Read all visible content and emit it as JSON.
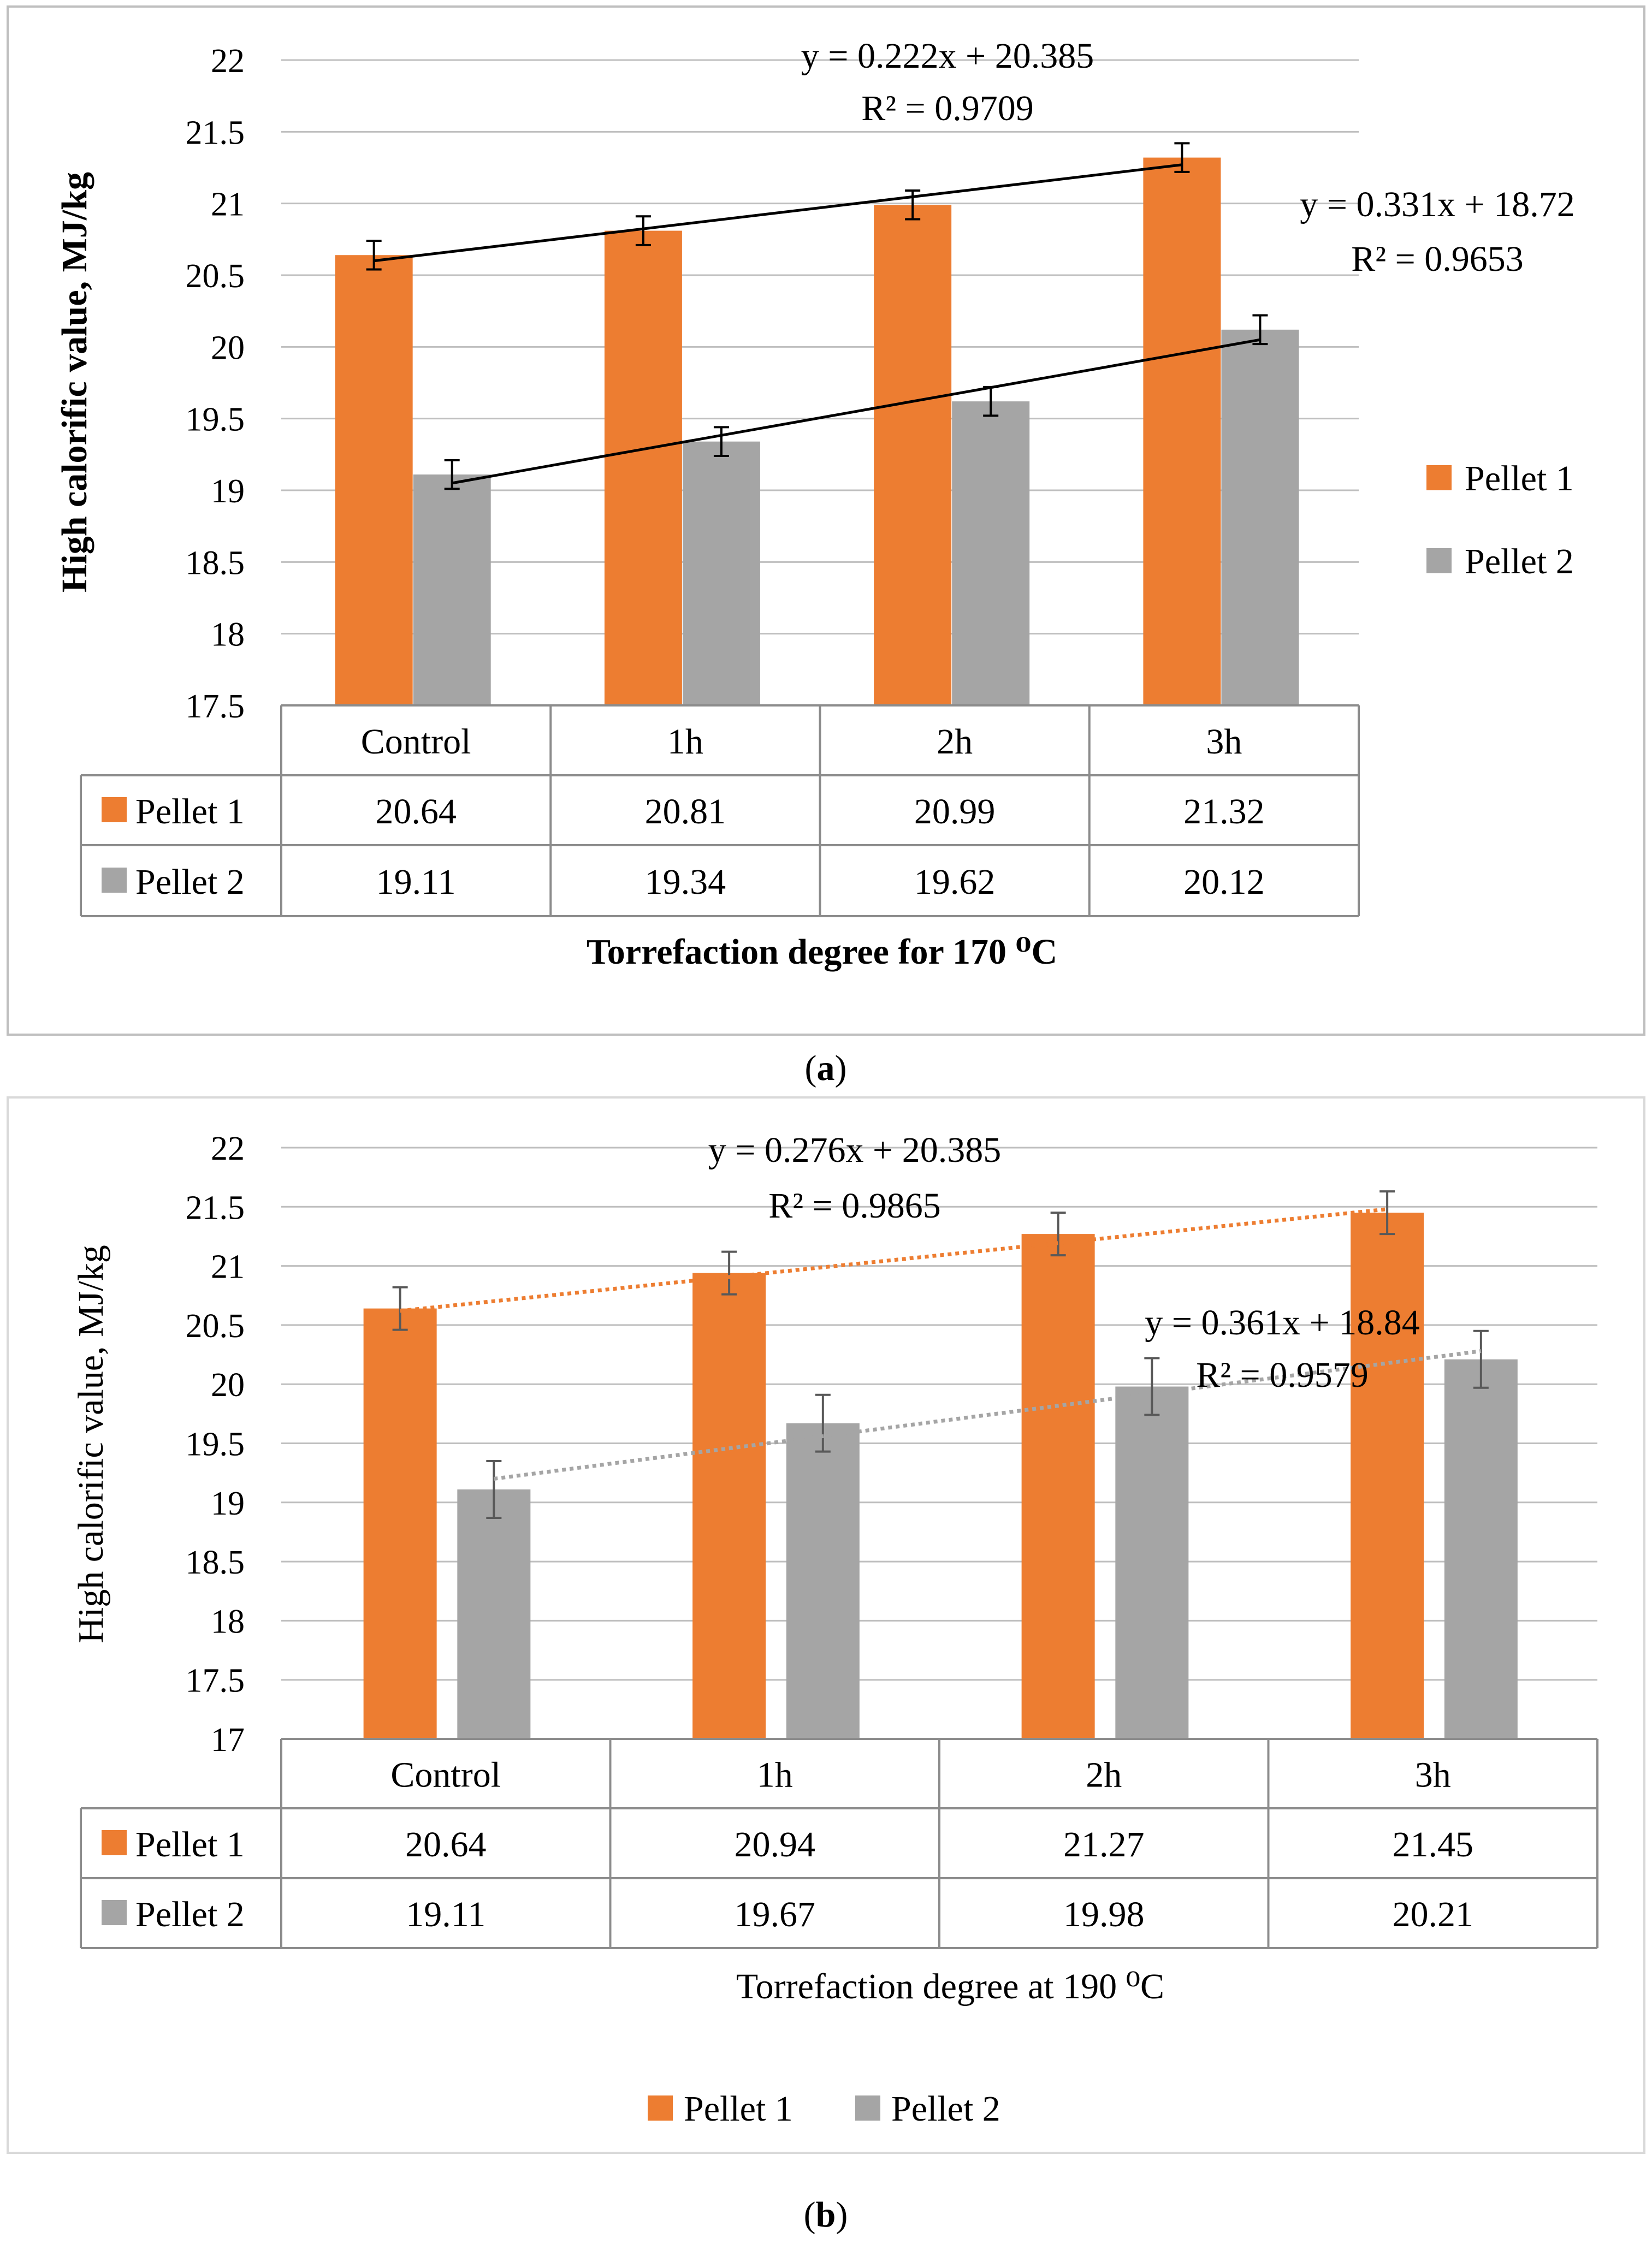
{
  "colors": {
    "pellet1": "#ED7D31",
    "pellet2": "#A5A5A5",
    "grid": "#BFBFBF",
    "table": "#8C8C8C",
    "frame": "#BFBFBF",
    "errorbar": "#000000",
    "errorbar_b": "#595959"
  },
  "panels": [
    {
      "caption_letter": "a",
      "chart_data": {
        "type": "bar",
        "categories": [
          "Control",
          "1h",
          "2h",
          "3h"
        ],
        "series": [
          {
            "name": "Pellet 1",
            "values": [
              20.64,
              20.81,
              20.99,
              21.32
            ],
            "errors": [
              0.1,
              0.1,
              0.1,
              0.1
            ]
          },
          {
            "name": "Pellet 2",
            "values": [
              19.11,
              19.34,
              19.62,
              20.12
            ],
            "errors": [
              0.1,
              0.1,
              0.1,
              0.1
            ]
          }
        ],
        "title": "",
        "xlabel": "Torrefaction degree for 170 ⁰C",
        "ylabel": "High calorific value, MJ/kg",
        "ylim": [
          17.5,
          22
        ],
        "yticks": [
          "22",
          "21.5",
          "21",
          "20.5",
          "20",
          "19.5",
          "19",
          "18.5",
          "18",
          "17.5"
        ],
        "ytick_values": [
          22,
          21.5,
          21,
          20.5,
          20,
          19.5,
          19,
          18.5,
          18,
          17.5
        ],
        "legend_position": "right",
        "data_table": true,
        "table_values": [
          [
            "20.64",
            "20.81",
            "20.99",
            "21.32"
          ],
          [
            "19.11",
            "19.34",
            "19.62",
            "20.12"
          ]
        ],
        "trendlines": [
          {
            "series": "Pellet 1",
            "style": "solid",
            "equation": "y = 0.222x + 20.385",
            "r2": "R² = 0.9709",
            "start": 20.6,
            "end": 21.27
          },
          {
            "series": "Pellet 2",
            "style": "solid",
            "equation": "y = 0.331x + 18.72",
            "r2": "R² = 0.9653",
            "start": 19.05,
            "end": 20.05
          }
        ]
      }
    },
    {
      "caption_letter": "b",
      "chart_data": {
        "type": "bar",
        "categories": [
          "Control",
          "1h",
          "2h",
          "3h"
        ],
        "series": [
          {
            "name": "Pellet 1",
            "values": [
              20.64,
              20.94,
              21.27,
              21.45
            ],
            "errors": [
              0.18,
              0.18,
              0.18,
              0.18
            ]
          },
          {
            "name": "Pellet 2",
            "values": [
              19.11,
              19.67,
              19.98,
              20.21
            ],
            "errors": [
              0.24,
              0.24,
              0.24,
              0.24
            ]
          }
        ],
        "title": "",
        "xlabel": "Torrefaction degree at 190 ⁰C",
        "ylabel": "High calorific value, MJ/kg",
        "ylim": [
          17,
          22
        ],
        "yticks": [
          "22",
          "21.5",
          "21",
          "20.5",
          "20",
          "19.5",
          "19",
          "18.5",
          "18",
          "17.5",
          "17"
        ],
        "ytick_values": [
          22,
          21.5,
          21,
          20.5,
          20,
          19.5,
          19,
          18.5,
          18,
          17.5,
          17
        ],
        "legend_position": "bottom",
        "data_table": true,
        "table_values": [
          [
            "20.64",
            "20.94",
            "21.27",
            "21.45"
          ],
          [
            "19.11",
            "19.67",
            "19.98",
            "20.21"
          ]
        ],
        "trendlines": [
          {
            "series": "Pellet 1",
            "style": "dotted",
            "equation": "y = 0.276x + 20.385",
            "r2": "R² = 0.9865",
            "start": 20.62,
            "end": 21.48
          },
          {
            "series": "Pellet 2",
            "style": "dotted",
            "equation": "y = 0.361x + 18.84",
            "r2": "R² = 0.9579",
            "start": 19.2,
            "end": 20.28
          }
        ]
      }
    }
  ]
}
